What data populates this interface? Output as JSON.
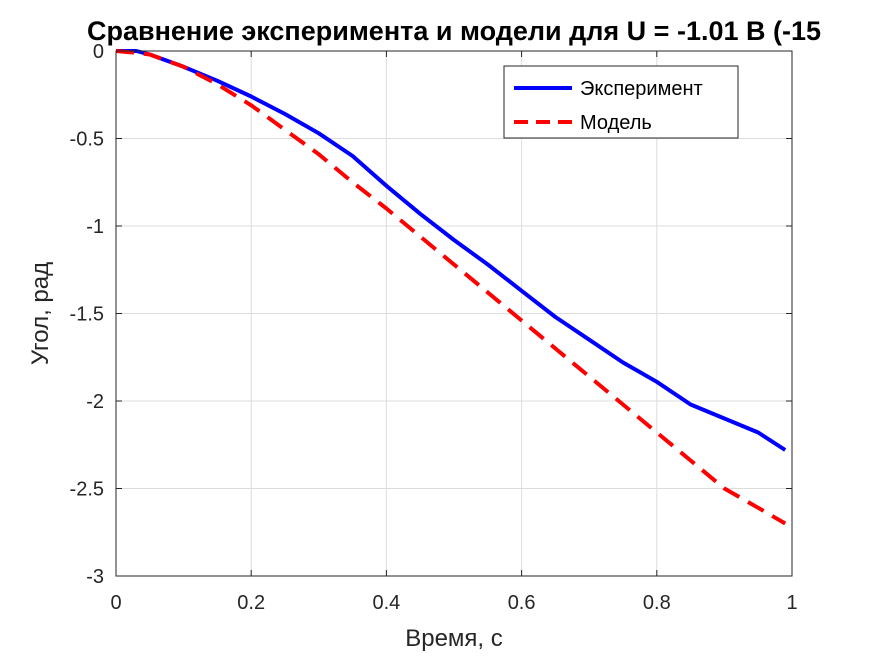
{
  "chart_data": {
    "type": "line",
    "title": "Сравнение эксперимента и модели для U = -1.01 В (-15",
    "xlabel": "Время, с",
    "ylabel": "Угол, рад",
    "xlim": [
      0,
      1
    ],
    "ylim": [
      -3,
      0
    ],
    "xticks": [
      "0",
      "0.2",
      "0.4",
      "0.6",
      "0.8",
      "1"
    ],
    "yticks": [
      "0",
      "-0.5",
      "-1",
      "-1.5",
      "-2",
      "-2.5",
      "-3"
    ],
    "grid": true,
    "legend_position": "top-right",
    "series": [
      {
        "name": "Эксперимент",
        "color": "#0000ff",
        "style": "solid",
        "x": [
          0,
          0.03,
          0.05,
          0.1,
          0.15,
          0.2,
          0.25,
          0.3,
          0.35,
          0.4,
          0.45,
          0.5,
          0.55,
          0.6,
          0.65,
          0.7,
          0.75,
          0.8,
          0.85,
          0.9,
          0.95,
          0.99
        ],
        "y": [
          0,
          0,
          -0.02,
          -0.09,
          -0.17,
          -0.26,
          -0.36,
          -0.47,
          -0.6,
          -0.77,
          -0.93,
          -1.08,
          -1.22,
          -1.37,
          -1.52,
          -1.65,
          -1.78,
          -1.89,
          -2.02,
          -2.1,
          -2.18,
          -2.28
        ]
      },
      {
        "name": "Модель",
        "color": "#ff0000",
        "style": "dashed",
        "x": [
          0,
          0.03,
          0.05,
          0.1,
          0.15,
          0.2,
          0.25,
          0.3,
          0.35,
          0.4,
          0.45,
          0.5,
          0.55,
          0.6,
          0.65,
          0.7,
          0.75,
          0.8,
          0.85,
          0.9,
          0.95,
          0.99
        ],
        "y": [
          0,
          -0.01,
          -0.02,
          -0.09,
          -0.19,
          -0.31,
          -0.45,
          -0.59,
          -0.75,
          -0.9,
          -1.06,
          -1.22,
          -1.38,
          -1.54,
          -1.7,
          -1.86,
          -2.02,
          -2.18,
          -2.34,
          -2.5,
          -2.61,
          -2.7
        ]
      }
    ]
  }
}
